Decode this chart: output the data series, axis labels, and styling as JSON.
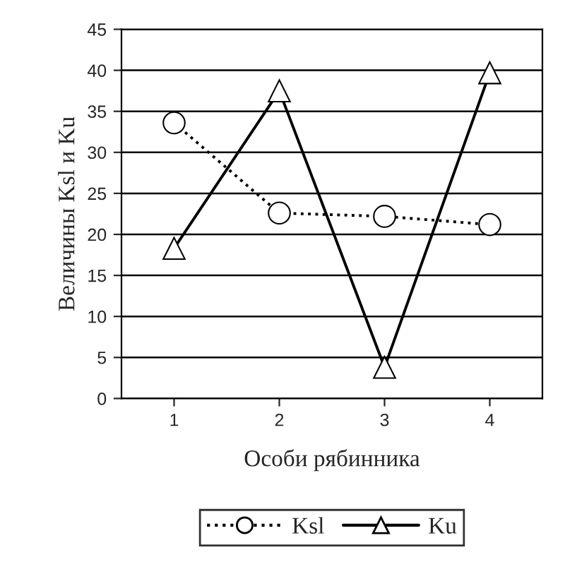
{
  "chart_data": {
    "type": "line",
    "xlabel": "Особи рябинника",
    "ylabel": "Величины Ksl и Ku",
    "categories": [
      "1",
      "2",
      "3",
      "4"
    ],
    "series": [
      {
        "name": "Ksl",
        "color": "#000000",
        "values": [
          33.6,
          22.6,
          22.2,
          21.2
        ],
        "marker": "circle",
        "line_style": "dotted"
      },
      {
        "name": "Ku",
        "color": "#000000",
        "values": [
          18.3,
          37.5,
          3.8,
          39.7
        ],
        "marker": "triangle",
        "line_style": "solid"
      }
    ],
    "ylim": [
      0,
      45
    ],
    "yticks": [
      0,
      5,
      10,
      15,
      20,
      25,
      30,
      35,
      40,
      45
    ],
    "grid": "y",
    "legend": "bottom"
  }
}
